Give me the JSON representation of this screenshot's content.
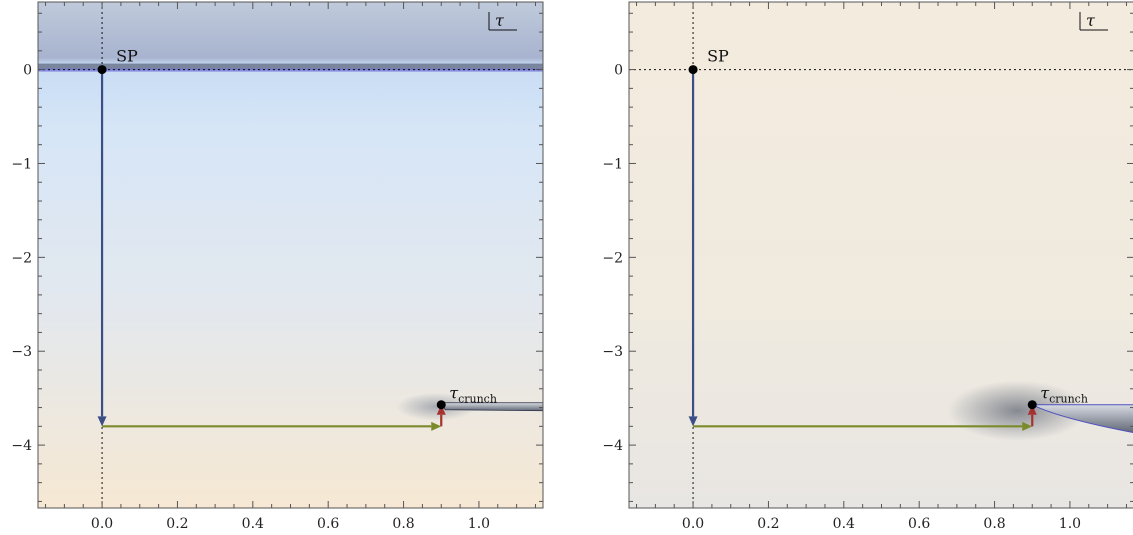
{
  "colors": {
    "down_arrow": "#3b4f86",
    "right_arrow": "#7b8a2a",
    "up_arrow": "#a5322f",
    "bg_left_top": "#c6d4e4",
    "bg_left_mid": "#d7e7f7",
    "bg_left_bottom": "#f3e8d6",
    "bg_right": "#f2eadb"
  },
  "chart_data": [
    {
      "type": "scatter",
      "title": "",
      "xlabel": "",
      "ylabel": "",
      "xlim": [
        -0.17,
        1.17
      ],
      "ylim": [
        -4.67,
        0.72
      ],
      "x_ticks": [
        0.0,
        0.2,
        0.4,
        0.6,
        0.8,
        1.0
      ],
      "x_tick_labels": [
        "0.0",
        "0.2",
        "0.4",
        "0.6",
        "0.8",
        "1.0"
      ],
      "y_ticks": [
        0,
        -1,
        -2,
        -3,
        -4
      ],
      "y_tick_labels": [
        "0",
        "−1",
        "−2",
        "−3",
        "−4"
      ],
      "corner_label": "τ",
      "points": [
        {
          "label": "SP",
          "x": 0.0,
          "y": 0.0
        },
        {
          "label": "τ",
          "sublabel": "crunch",
          "x": 0.9,
          "y": -3.57
        }
      ],
      "arrows": [
        {
          "from": [
            0.0,
            0.0
          ],
          "to": [
            0.0,
            -3.8
          ],
          "color": "#3b4f86"
        },
        {
          "from": [
            0.0,
            -3.8
          ],
          "to": [
            0.9,
            -3.8
          ],
          "color": "#7b8a2a"
        },
        {
          "from": [
            0.9,
            -3.8
          ],
          "to": [
            0.9,
            -3.57
          ],
          "color": "#a5322f"
        }
      ],
      "reference_lines": {
        "x": 0.0,
        "y": 0.0
      },
      "grid": false
    },
    {
      "type": "scatter",
      "title": "",
      "xlabel": "",
      "ylabel": "",
      "xlim": [
        -0.17,
        1.17
      ],
      "ylim": [
        -4.67,
        0.72
      ],
      "x_ticks": [
        0.0,
        0.2,
        0.4,
        0.6,
        0.8,
        1.0
      ],
      "x_tick_labels": [
        "0.0",
        "0.2",
        "0.4",
        "0.6",
        "0.8",
        "1.0"
      ],
      "y_ticks": [
        0,
        -1,
        -2,
        -3,
        -4
      ],
      "y_tick_labels": [
        "0",
        "−1",
        "−2",
        "−3",
        "−4"
      ],
      "corner_label": "τ",
      "points": [
        {
          "label": "SP",
          "x": 0.0,
          "y": 0.0
        },
        {
          "label": "τ",
          "sublabel": "crunch",
          "x": 0.9,
          "y": -3.57
        }
      ],
      "arrows": [
        {
          "from": [
            0.0,
            0.0
          ],
          "to": [
            0.0,
            -3.8
          ],
          "color": "#3b4f86"
        },
        {
          "from": [
            0.0,
            -3.8
          ],
          "to": [
            0.9,
            -3.8
          ],
          "color": "#7b8a2a"
        },
        {
          "from": [
            0.9,
            -3.8
          ],
          "to": [
            0.9,
            -3.57
          ],
          "color": "#a5322f"
        }
      ],
      "reference_lines": {
        "x": 0.0,
        "y": 0.0
      },
      "grid": false
    }
  ]
}
